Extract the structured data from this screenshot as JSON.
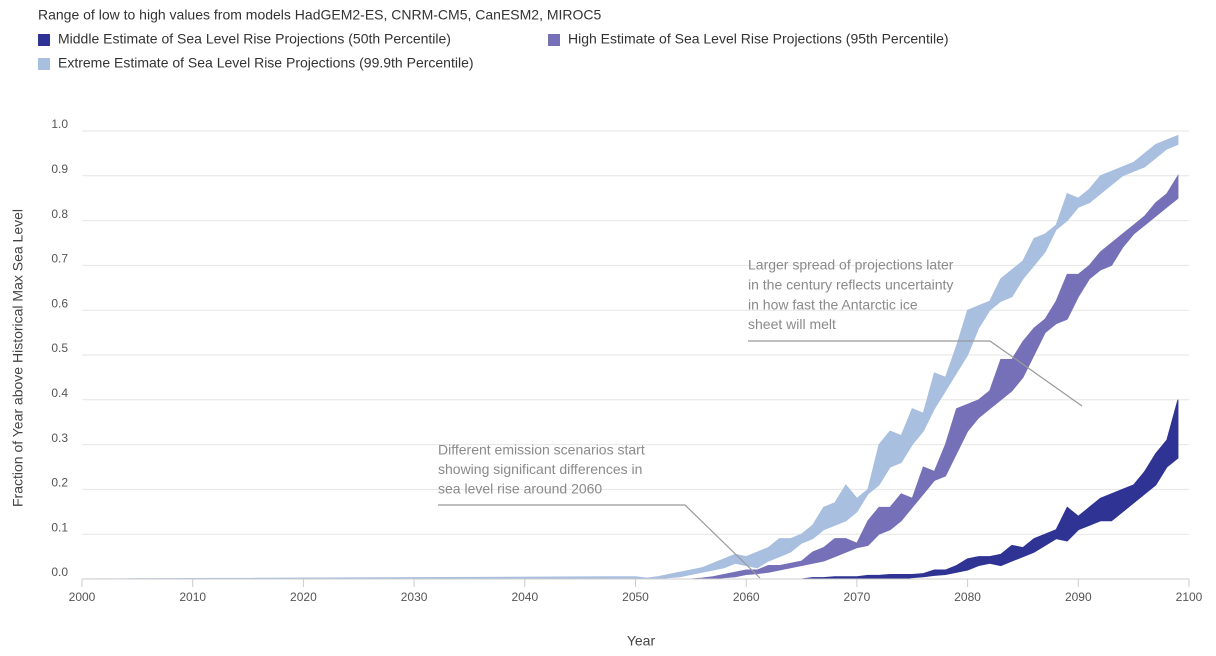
{
  "chart_data": {
    "type": "arearange",
    "subtitle": "Range of low to high values from models HadGEM2-ES, CNRM-CM5, CanESM2, MIROC5",
    "x_label": "Year",
    "y_label": "Fraction of Year above Historical Max Sea Level",
    "xlim": [
      2000,
      2100
    ],
    "ylim": [
      0,
      1.0
    ],
    "xticks": [
      2000,
      2010,
      2020,
      2030,
      2040,
      2050,
      2060,
      2070,
      2080,
      2090,
      2100
    ],
    "yticks": [
      {
        "value": 0,
        "label": "0.0"
      },
      0.1,
      0.2,
      0.3,
      0.4,
      0.5,
      0.6,
      0.7,
      0.8,
      0.9,
      {
        "value": 1.0,
        "label": "1.0"
      }
    ],
    "grid": true,
    "x": [
      2000,
      2048,
      2049,
      2050,
      2051,
      2052,
      2053,
      2054,
      2055,
      2056,
      2057,
      2058,
      2059,
      2060,
      2061,
      2062,
      2063,
      2064,
      2065,
      2066,
      2067,
      2068,
      2069,
      2070,
      2071,
      2072,
      2073,
      2074,
      2075,
      2076,
      2077,
      2078,
      2079,
      2080,
      2081,
      2082,
      2083,
      2084,
      2085,
      2086,
      2087,
      2088,
      2089,
      2090,
      2091,
      2092,
      2093,
      2094,
      2095,
      2096,
      2097,
      2098,
      2099
    ],
    "series": [
      {
        "name": "Middle Estimate of Sea Level Rise Projections (50th Percentile)",
        "color": "#2f3393",
        "low": [
          0,
          0,
          0,
          0,
          0,
          0,
          0,
          0,
          0,
          0,
          0,
          0,
          0,
          0,
          0,
          0,
          0,
          0,
          0,
          0,
          0,
          0,
          0,
          0,
          0,
          0,
          0,
          0,
          0.003,
          0.005,
          0.008,
          0.01,
          0.015,
          0.02,
          0.03,
          0.035,
          0.03,
          0.04,
          0.05,
          0.06,
          0.075,
          0.09,
          0.085,
          0.11,
          0.12,
          0.13,
          0.13,
          0.15,
          0.17,
          0.19,
          0.21,
          0.25,
          0.27
        ],
        "high": [
          0,
          0,
          0,
          0,
          0,
          0,
          0,
          0,
          0,
          0,
          0,
          0,
          0,
          0,
          0,
          0,
          0,
          0,
          0,
          0.003,
          0.003,
          0.005,
          0.005,
          0.005,
          0.008,
          0.008,
          0.01,
          0.01,
          0.01,
          0.012,
          0.02,
          0.02,
          0.03,
          0.045,
          0.05,
          0.05,
          0.055,
          0.075,
          0.07,
          0.09,
          0.1,
          0.11,
          0.16,
          0.14,
          0.16,
          0.18,
          0.19,
          0.2,
          0.21,
          0.24,
          0.28,
          0.31,
          0.4
        ]
      },
      {
        "name": "High Estimate of Sea Level Rise Projections (95th Percentile)",
        "color": "#7670b8",
        "low": [
          0,
          0,
          0,
          0,
          0,
          0,
          0,
          0,
          0,
          0,
          0,
          0.003,
          0.005,
          0.01,
          0.012,
          0.015,
          0.02,
          0.025,
          0.03,
          0.035,
          0.04,
          0.05,
          0.06,
          0.07,
          0.075,
          0.1,
          0.11,
          0.13,
          0.16,
          0.19,
          0.22,
          0.23,
          0.28,
          0.33,
          0.36,
          0.38,
          0.4,
          0.42,
          0.45,
          0.5,
          0.55,
          0.57,
          0.58,
          0.63,
          0.67,
          0.69,
          0.7,
          0.74,
          0.77,
          0.79,
          0.81,
          0.83,
          0.85
        ],
        "high": [
          0,
          0,
          0,
          0,
          0,
          0,
          0,
          0,
          0,
          0.002,
          0.005,
          0.01,
          0.015,
          0.02,
          0.02,
          0.03,
          0.03,
          0.035,
          0.04,
          0.06,
          0.07,
          0.09,
          0.09,
          0.08,
          0.13,
          0.16,
          0.16,
          0.19,
          0.18,
          0.25,
          0.24,
          0.3,
          0.38,
          0.39,
          0.4,
          0.42,
          0.49,
          0.49,
          0.53,
          0.56,
          0.58,
          0.62,
          0.68,
          0.68,
          0.7,
          0.73,
          0.75,
          0.77,
          0.79,
          0.81,
          0.84,
          0.86,
          0.9
        ]
      },
      {
        "name": "Extreme Estimate of Sea Level Rise Projections (99.9th Percentile)",
        "color": "#a9bfe0",
        "low": [
          0,
          0,
          0,
          0,
          0,
          0,
          0.003,
          0.005,
          0.01,
          0.015,
          0.02,
          0.025,
          0.035,
          0.03,
          0.025,
          0.04,
          0.05,
          0.06,
          0.08,
          0.09,
          0.11,
          0.12,
          0.13,
          0.15,
          0.19,
          0.21,
          0.25,
          0.26,
          0.3,
          0.33,
          0.38,
          0.42,
          0.46,
          0.5,
          0.56,
          0.6,
          0.62,
          0.63,
          0.67,
          0.7,
          0.73,
          0.78,
          0.8,
          0.83,
          0.84,
          0.86,
          0.88,
          0.9,
          0.91,
          0.92,
          0.94,
          0.96,
          0.97
        ],
        "high": [
          0,
          0.005,
          0.005,
          0.005,
          0.002,
          0.005,
          0.01,
          0.015,
          0.02,
          0.025,
          0.035,
          0.045,
          0.055,
          0.05,
          0.06,
          0.07,
          0.09,
          0.09,
          0.1,
          0.12,
          0.16,
          0.17,
          0.21,
          0.18,
          0.2,
          0.3,
          0.33,
          0.32,
          0.38,
          0.37,
          0.46,
          0.45,
          0.52,
          0.6,
          0.61,
          0.62,
          0.67,
          0.69,
          0.71,
          0.76,
          0.77,
          0.79,
          0.86,
          0.85,
          0.87,
          0.9,
          0.91,
          0.92,
          0.93,
          0.95,
          0.97,
          0.98,
          0.99
        ]
      }
    ],
    "annotations": [
      {
        "lines": [
          "Different emission scenarios start",
          "showing significant differences in",
          "sea level rise around 2060"
        ]
      },
      {
        "lines": [
          "Larger spread of projections later",
          "in the century reflects uncertainty",
          "in how fast the Antarctic ice",
          "sheet will melt"
        ]
      }
    ]
  }
}
